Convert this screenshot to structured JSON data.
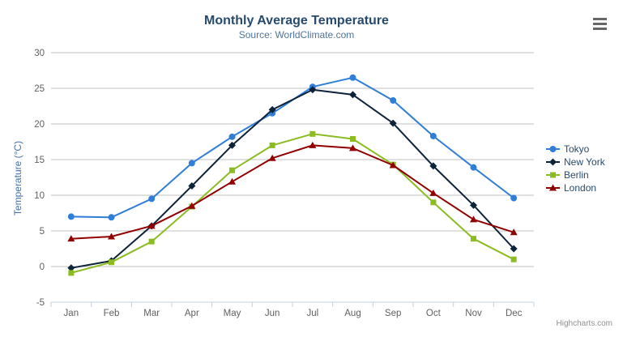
{
  "header": {
    "title": "Monthly Average Temperature",
    "subtitle": "Source: WorldClimate.com"
  },
  "credits": {
    "label": "Highcharts.com"
  },
  "icons": {
    "context_menu": "hamburger-icon"
  },
  "colors": {
    "title": "#274b6d",
    "subtitle": "#4d759e",
    "axis_title": "#4572a7",
    "axis_labels": "#606060",
    "grid": "#c0c0c0",
    "axis_line": "#c0d0e0",
    "legend_text": "#274b6d",
    "hamburger": "#666666"
  },
  "chart_data": {
    "type": "line",
    "title": "Monthly Average Temperature",
    "subtitle": "Source: WorldClimate.com",
    "categories": [
      "Jan",
      "Feb",
      "Mar",
      "Apr",
      "May",
      "Jun",
      "Jul",
      "Aug",
      "Sep",
      "Oct",
      "Nov",
      "Dec"
    ],
    "xlabel": "",
    "ylabel": "Temperature (°C)",
    "ylim": [
      -5,
      30
    ],
    "y_tick_interval": 5,
    "y_tick_labels": [
      "-5",
      "0",
      "5",
      "10",
      "15",
      "20",
      "25",
      "30"
    ],
    "grid": true,
    "legend_position": "right",
    "series": [
      {
        "name": "Tokyo",
        "color": "#2f7ed8",
        "marker": "circle",
        "values": [
          7.0,
          6.9,
          9.5,
          14.5,
          18.2,
          21.5,
          25.2,
          26.5,
          23.3,
          18.3,
          13.9,
          9.6
        ]
      },
      {
        "name": "New York",
        "color": "#0d233a",
        "marker": "diamond",
        "values": [
          -0.2,
          0.8,
          5.7,
          11.3,
          17.0,
          22.0,
          24.8,
          24.1,
          20.1,
          14.1,
          8.6,
          2.5
        ]
      },
      {
        "name": "Berlin",
        "color": "#8bbc21",
        "marker": "square",
        "values": [
          -0.9,
          0.6,
          3.5,
          8.4,
          13.5,
          17.0,
          18.6,
          17.9,
          14.3,
          9.0,
          3.9,
          1.0
        ]
      },
      {
        "name": "London",
        "color": "#910000",
        "marker": "triangle",
        "values": [
          3.9,
          4.2,
          5.7,
          8.5,
          11.9,
          15.2,
          17.0,
          16.6,
          14.2,
          10.3,
          6.6,
          4.8
        ]
      }
    ]
  }
}
